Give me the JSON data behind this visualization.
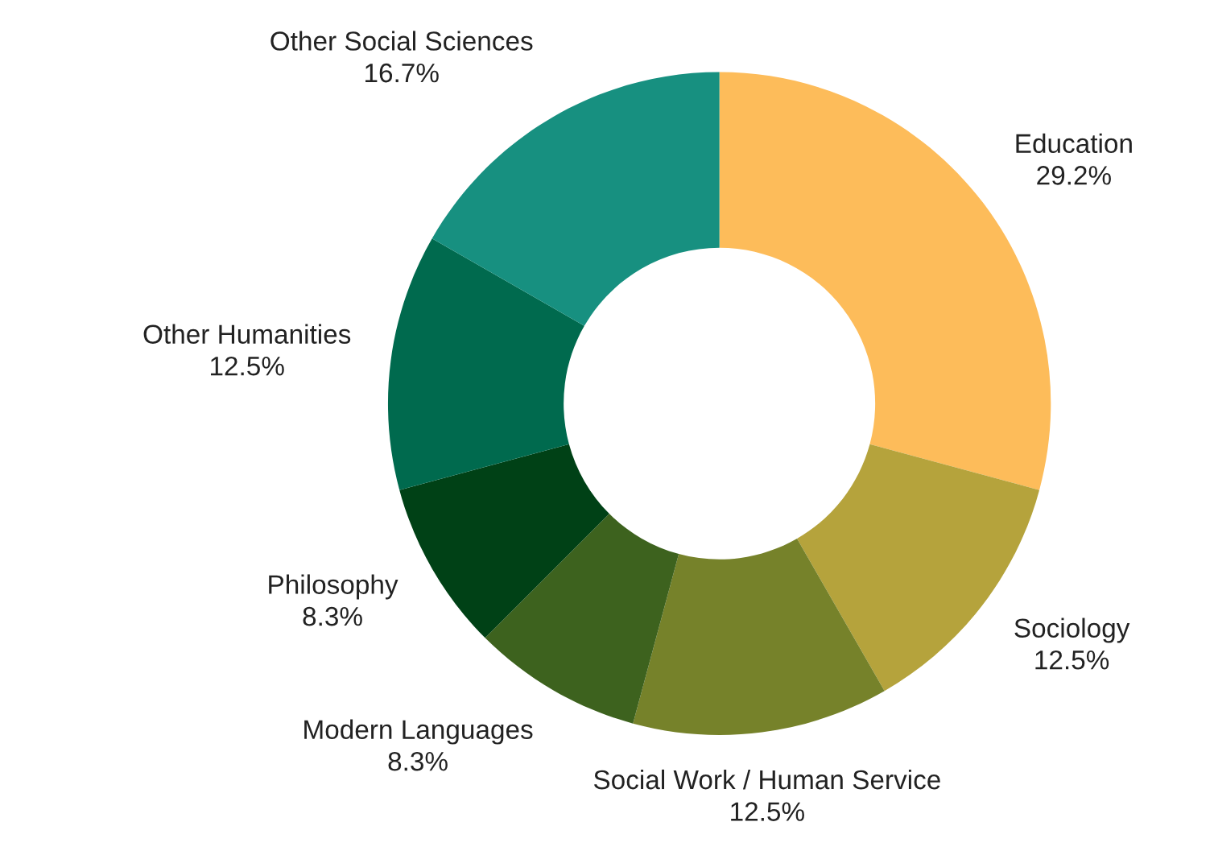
{
  "chart_data": {
    "type": "donut",
    "categories": [
      "Education",
      "Sociology",
      "Social Work / Human Service",
      "Modern Languages",
      "Philosophy",
      "Other Humanities",
      "Other Social Sciences"
    ],
    "values": [
      29.2,
      12.5,
      12.5,
      8.3,
      8.3,
      12.5,
      16.7
    ],
    "value_labels": [
      "29.2%",
      "12.5%",
      "12.5%",
      "8.3%",
      "8.3%",
      "12.5%",
      "16.7%"
    ],
    "colors": [
      "#fdbc5a",
      "#b5a33c",
      "#76822a",
      "#3d621e",
      "#004116",
      "#006a4e",
      "#179080"
    ],
    "legend": false
  }
}
